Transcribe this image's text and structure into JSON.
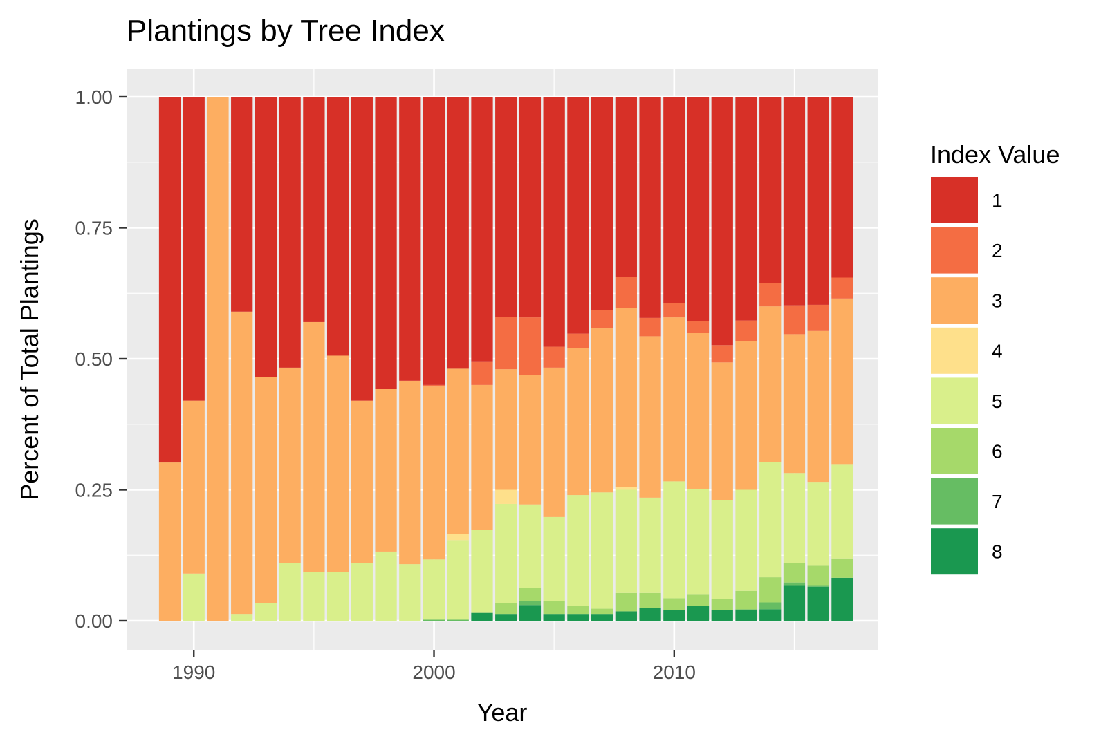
{
  "chart_data": {
    "type": "bar",
    "stacked": true,
    "title": "Plantings by Tree Index",
    "xlabel": "Year",
    "ylabel": "Percent of Total Plantings",
    "ylim": [
      0,
      1
    ],
    "xlim": [
      1987.2,
      2018.5
    ],
    "xticks": [
      1990,
      2000,
      2010
    ],
    "xtick_labels": [
      "1990",
      "2000",
      "2010"
    ],
    "yticks": [
      0,
      0.25,
      0.5,
      0.75,
      1.0
    ],
    "ytick_labels": [
      "0.00",
      "0.25",
      "0.50",
      "0.75",
      "1.00"
    ],
    "grid": true,
    "legend": {
      "title": "Index Value",
      "position": "right"
    },
    "categories": [
      1989,
      1990,
      1991,
      1992,
      1993,
      1994,
      1995,
      1996,
      1997,
      1998,
      1999,
      2000,
      2001,
      2002,
      2003,
      2004,
      2005,
      2006,
      2007,
      2008,
      2009,
      2010,
      2011,
      2012,
      2013,
      2014,
      2015,
      2016,
      2017
    ],
    "series": [
      {
        "name": "8",
        "color": "#1a9850",
        "values": [
          0,
          0,
          0,
          0,
          0,
          0,
          0,
          0,
          0,
          0,
          0,
          0,
          0,
          0.015,
          0.013,
          0.03,
          0.013,
          0.013,
          0.013,
          0.018,
          0.025,
          0.02,
          0.028,
          0.02,
          0.02,
          0.022,
          0.068,
          0.065,
          0.082
        ]
      },
      {
        "name": "7",
        "color": "#66bd63",
        "values": [
          0,
          0,
          0,
          0,
          0,
          0,
          0,
          0,
          0,
          0,
          0,
          0.002,
          0.002,
          0,
          0,
          0.007,
          0,
          0,
          0,
          0,
          0,
          0,
          0,
          0,
          0.002,
          0.013,
          0.005,
          0.003,
          0
        ]
      },
      {
        "name": "6",
        "color": "#a6d96a",
        "values": [
          0,
          0,
          0,
          0,
          0,
          0,
          0,
          0,
          0,
          0,
          0,
          0,
          0,
          0,
          0.02,
          0.025,
          0.025,
          0.015,
          0.01,
          0.035,
          0.028,
          0.023,
          0.023,
          0.022,
          0.035,
          0.048,
          0.037,
          0.037,
          0.037
        ]
      },
      {
        "name": "5",
        "color": "#d9ef8b",
        "values": [
          0,
          0.09,
          0,
          0.013,
          0.033,
          0.11,
          0.093,
          0.093,
          0.11,
          0.132,
          0.108,
          0.115,
          0.152,
          0.158,
          0.19,
          0.16,
          0.16,
          0.212,
          0.222,
          0.197,
          0.182,
          0.223,
          0.201,
          0.188,
          0.193,
          0.22,
          0.172,
          0.16,
          0.18
        ]
      },
      {
        "name": "4",
        "color": "#fee08b",
        "values": [
          0,
          0,
          0,
          0,
          0,
          0,
          0,
          0,
          0,
          0,
          0,
          0,
          0.012,
          0,
          0.027,
          0,
          0,
          0,
          0,
          0.005,
          0,
          0,
          0,
          0,
          0,
          0,
          0,
          0,
          0
        ]
      },
      {
        "name": "3",
        "color": "#fdae61",
        "values": [
          0.302,
          0.33,
          1.0,
          0.577,
          0.432,
          0.373,
          0.477,
          0.413,
          0.31,
          0.31,
          0.35,
          0.33,
          0.315,
          0.277,
          0.23,
          0.247,
          0.285,
          0.28,
          0.313,
          0.342,
          0.308,
          0.313,
          0.298,
          0.263,
          0.283,
          0.297,
          0.265,
          0.288,
          0.316
        ]
      },
      {
        "name": "2",
        "color": "#f46d43",
        "values": [
          0,
          0,
          0,
          0,
          0,
          0,
          0,
          0,
          0,
          0,
          0,
          0.003,
          0,
          0.045,
          0.1,
          0.11,
          0.04,
          0.028,
          0.035,
          0.06,
          0.035,
          0.027,
          0.022,
          0.033,
          0.04,
          0.045,
          0.055,
          0.05,
          0.04
        ]
      },
      {
        "name": "1",
        "color": "#d73027",
        "values": [
          0.698,
          0.58,
          0,
          0.41,
          0.535,
          0.517,
          0.43,
          0.494,
          0.58,
          0.558,
          0.542,
          0.55,
          0.519,
          0.505,
          0.42,
          0.421,
          0.477,
          0.452,
          0.407,
          0.343,
          0.422,
          0.394,
          0.428,
          0.474,
          0.427,
          0.355,
          0.398,
          0.397,
          0.345
        ]
      }
    ]
  }
}
